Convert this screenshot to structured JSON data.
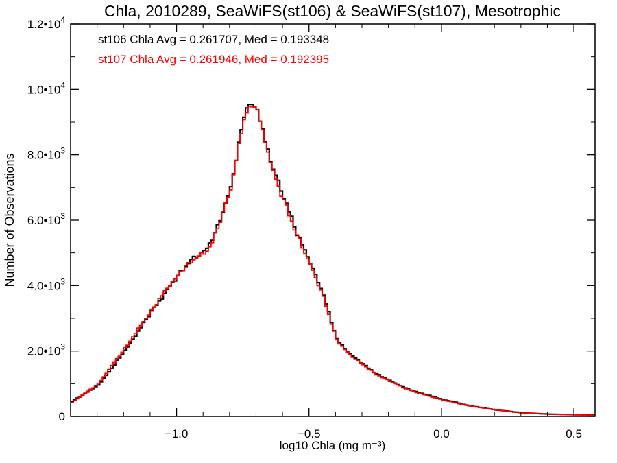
{
  "chart_data": {
    "type": "line",
    "title": "Chla, 2010289, SeaWiFS(st106) & SeaWiFS(st107), Mesotrophic",
    "xlabel": "log10 Chla (mg m⁻³)",
    "ylabel": "Number of Observations",
    "xlim": [
      -1.4,
      0.58
    ],
    "ylim": [
      0,
      12000
    ],
    "x_ticks": [
      -1.0,
      -0.5,
      0.0,
      0.5
    ],
    "x_tick_labels": [
      "−1.0",
      "−0.5",
      "0.0",
      "0.5"
    ],
    "y_ticks": [
      0,
      2000,
      4000,
      6000,
      8000,
      10000,
      12000
    ],
    "y_tick_labels": [
      {
        "mant": "0",
        "exp": ""
      },
      {
        "mant": "2.0•10",
        "exp": "3"
      },
      {
        "mant": "4.0•10",
        "exp": "3"
      },
      {
        "mant": "6.0•10",
        "exp": "3"
      },
      {
        "mant": "8.0•10",
        "exp": "3"
      },
      {
        "mant": "1.0•10",
        "exp": "4"
      },
      {
        "mant": "1.2•10",
        "exp": "4"
      }
    ],
    "annotations": [
      {
        "text": "st106 Chla Avg = 0.261707, Med = 0.193348",
        "color": "#000000"
      },
      {
        "text": "st107 Chla Avg = 0.261946, Med = 0.192395",
        "color": "#ff0000"
      }
    ],
    "grid": false,
    "step": true,
    "series": [
      {
        "name": "st106",
        "color": "#000000",
        "x": [
          -1.4,
          -1.3,
          -1.2,
          -1.1,
          -1.0,
          -0.95,
          -0.9,
          -0.88,
          -0.85,
          -0.8,
          -0.76,
          -0.74,
          -0.72,
          -0.7,
          -0.68,
          -0.65,
          -0.6,
          -0.55,
          -0.5,
          -0.45,
          -0.4,
          -0.35,
          -0.3,
          -0.25,
          -0.2,
          -0.15,
          -0.1,
          0.0,
          0.1,
          0.2,
          0.3,
          0.4,
          0.5,
          0.58
        ],
        "y": [
          450,
          950,
          2000,
          3200,
          4300,
          4800,
          5050,
          5250,
          5800,
          7000,
          8800,
          9500,
          9600,
          9400,
          8800,
          7800,
          6700,
          5600,
          4700,
          3700,
          2350,
          1900,
          1600,
          1300,
          1100,
          900,
          750,
          520,
          330,
          200,
          110,
          70,
          50,
          40
        ]
      },
      {
        "name": "st107",
        "color": "#ff0000",
        "x": [
          -1.4,
          -1.3,
          -1.2,
          -1.1,
          -1.0,
          -0.95,
          -0.9,
          -0.88,
          -0.85,
          -0.8,
          -0.76,
          -0.74,
          -0.72,
          -0.7,
          -0.68,
          -0.65,
          -0.6,
          -0.55,
          -0.5,
          -0.45,
          -0.4,
          -0.35,
          -0.3,
          -0.25,
          -0.2,
          -0.15,
          -0.1,
          0.0,
          0.1,
          0.2,
          0.3,
          0.4,
          0.5,
          0.58
        ],
        "y": [
          420,
          1000,
          2080,
          3250,
          4350,
          4750,
          5000,
          5200,
          5750,
          6950,
          8700,
          9350,
          9500,
          9350,
          8700,
          7700,
          6600,
          5550,
          4650,
          3650,
          2330,
          1880,
          1580,
          1280,
          1080,
          880,
          730,
          500,
          320,
          195,
          108,
          68,
          48,
          38
        ]
      }
    ]
  }
}
